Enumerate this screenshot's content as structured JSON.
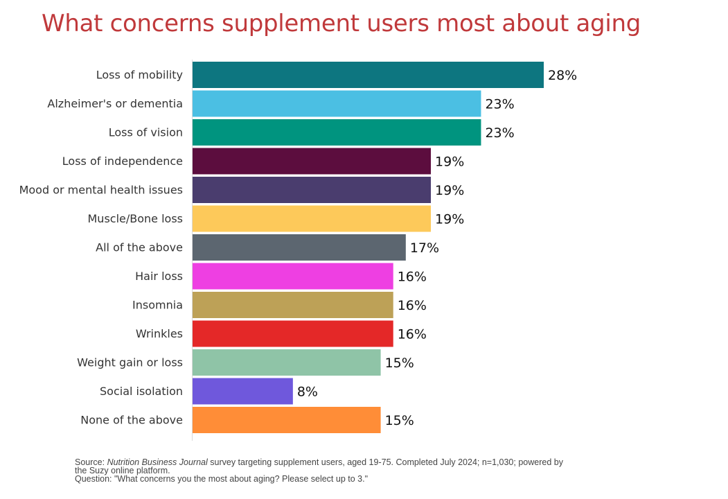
{
  "chart_data": {
    "type": "bar",
    "orientation": "horizontal",
    "title": "What concerns supplement users most about aging",
    "categories": [
      "Loss of mobility",
      "Alzheimer's or dementia",
      "Loss of vision",
      "Loss of independence",
      "Mood or mental health issues",
      "Muscle/Bone loss",
      "All of the above",
      "Hair loss",
      "Insomnia",
      "Wrinkles",
      "Weight gain or loss",
      "Social isolation",
      "None of the above"
    ],
    "values": [
      28,
      23,
      23,
      19,
      19,
      19,
      17,
      16,
      16,
      16,
      15,
      8,
      15
    ],
    "value_labels": [
      "28%",
      "23%",
      "23%",
      "19%",
      "19%",
      "19%",
      "17%",
      "16%",
      "16%",
      "16%",
      "15%",
      "8%",
      "15%"
    ],
    "colors": [
      "#0d7680",
      "#4bbfe3",
      "#00947f",
      "#5c0d3e",
      "#4a3d6e",
      "#fdc95a",
      "#5c6670",
      "#ee3fe2",
      "#bda157",
      "#e42828",
      "#8fc4a7",
      "#6f58dc",
      "#ff8d37"
    ],
    "xlim": [
      0,
      28
    ],
    "grid": false,
    "legend": "none"
  },
  "footer": {
    "source_prefix": "Source: ",
    "source_journal": "Nutrition Business Journal",
    "source_rest": " survey targeting supplement users, aged 19-75. Completed July 2024;  n=1,030; powered by",
    "source_line2": "the Suzy online platform.",
    "question": "Question: \"What concerns you the most about aging? Please select up to 3.\""
  }
}
